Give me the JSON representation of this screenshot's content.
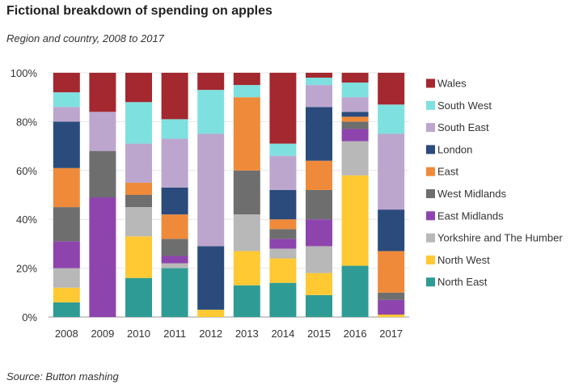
{
  "title": "Fictional breakdown of spending on apples",
  "subtitle": "Region and country, 2008 to 2017",
  "source": "Source: Button mashing",
  "chart_data": {
    "type": "bar",
    "stacked": true,
    "percent": true,
    "title": "Fictional breakdown of spending on apples",
    "subtitle": "Region and country, 2008 to 2017",
    "xlabel": "",
    "ylabel": "",
    "ylim": [
      0,
      100
    ],
    "yticks": [
      "0%",
      "20%",
      "40%",
      "60%",
      "80%",
      "100%"
    ],
    "categories": [
      "2008",
      "2009",
      "2010",
      "2011",
      "2012",
      "2013",
      "2014",
      "2015",
      "2016",
      "2017"
    ],
    "legend_position": "right",
    "series": [
      {
        "name": "North East",
        "color": "#2E9C94",
        "values": [
          6,
          0,
          16,
          20,
          0,
          13,
          14,
          9,
          21,
          0
        ]
      },
      {
        "name": "North West",
        "color": "#FFC933",
        "values": [
          6,
          0,
          17,
          0,
          3,
          14,
          10,
          9,
          37,
          1
        ]
      },
      {
        "name": "Yorkshire and The Humber",
        "color": "#B8B8B8",
        "values": [
          8,
          0,
          12,
          2,
          0,
          15,
          4,
          11,
          14,
          0
        ]
      },
      {
        "name": "East Midlands",
        "color": "#8E44AD",
        "values": [
          11,
          49,
          0,
          3,
          0,
          0,
          4,
          11,
          5,
          6
        ]
      },
      {
        "name": "West Midlands",
        "color": "#6E6E6E",
        "values": [
          14,
          19,
          5,
          7,
          0,
          18,
          4,
          12,
          3,
          3
        ]
      },
      {
        "name": "East",
        "color": "#EE8A3A",
        "values": [
          16,
          0,
          5,
          10,
          0,
          30,
          4,
          12,
          2,
          17
        ]
      },
      {
        "name": "London",
        "color": "#2A4B7C",
        "values": [
          19,
          0,
          0,
          11,
          26,
          0,
          12,
          22,
          2,
          17
        ]
      },
      {
        "name": "South East",
        "color": "#BCA6CE",
        "values": [
          6,
          16,
          16,
          20,
          46,
          0,
          14,
          9,
          6,
          31
        ]
      },
      {
        "name": "South West",
        "color": "#7FE0E0",
        "values": [
          6,
          0,
          17,
          8,
          18,
          5,
          5,
          3,
          6,
          12
        ]
      },
      {
        "name": "Wales",
        "color": "#A4282F",
        "values": [
          8,
          16,
          12,
          19,
          7,
          5,
          29,
          2,
          4,
          13
        ]
      }
    ]
  }
}
